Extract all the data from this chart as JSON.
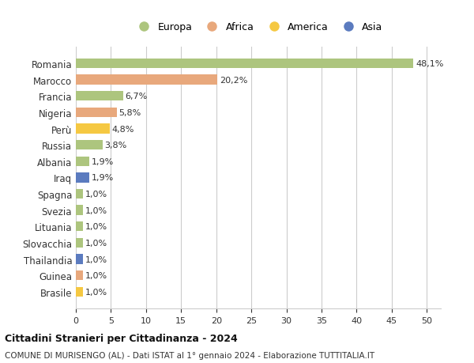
{
  "categories": [
    "Romania",
    "Marocco",
    "Francia",
    "Nigeria",
    "Perù",
    "Russia",
    "Albania",
    "Iraq",
    "Spagna",
    "Svezia",
    "Lituania",
    "Slovacchia",
    "Thailandia",
    "Guinea",
    "Brasile"
  ],
  "values": [
    48.1,
    20.2,
    6.7,
    5.8,
    4.8,
    3.8,
    1.9,
    1.9,
    1.0,
    1.0,
    1.0,
    1.0,
    1.0,
    1.0,
    1.0
  ],
  "labels": [
    "48,1%",
    "20,2%",
    "6,7%",
    "5,8%",
    "4,8%",
    "3,8%",
    "1,9%",
    "1,9%",
    "1,0%",
    "1,0%",
    "1,0%",
    "1,0%",
    "1,0%",
    "1,0%",
    "1,0%"
  ],
  "continents": [
    "Europa",
    "Africa",
    "Europa",
    "Africa",
    "America",
    "Europa",
    "Europa",
    "Asia",
    "Europa",
    "Europa",
    "Europa",
    "Europa",
    "Asia",
    "Africa",
    "America"
  ],
  "continent_colors": {
    "Europa": "#adc57e",
    "Africa": "#e8a87c",
    "America": "#f5c842",
    "Asia": "#5b7bbf"
  },
  "legend_order": [
    "Europa",
    "Africa",
    "America",
    "Asia"
  ],
  "title": "Cittadini Stranieri per Cittadinanza - 2024",
  "subtitle": "COMUNE DI MURISENGO (AL) - Dati ISTAT al 1° gennaio 2024 - Elaborazione TUTTITALIA.IT",
  "xlim": [
    0,
    52
  ],
  "xticks": [
    0,
    5,
    10,
    15,
    20,
    25,
    30,
    35,
    40,
    45,
    50
  ],
  "background_color": "#ffffff",
  "grid_color": "#cccccc",
  "bar_height": 0.6
}
